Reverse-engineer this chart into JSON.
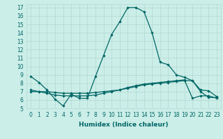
{
  "title": "",
  "xlabel": "Humidex (Indice chaleur)",
  "bg_color": "#cceee8",
  "grid_color": "#b0d8d0",
  "line_color": "#006666",
  "xlim": [
    -0.5,
    23.5
  ],
  "ylim": [
    5,
    17.4
  ],
  "xticks": [
    0,
    1,
    2,
    3,
    4,
    5,
    6,
    7,
    8,
    9,
    10,
    11,
    12,
    13,
    14,
    15,
    16,
    17,
    18,
    19,
    20,
    21,
    22,
    23
  ],
  "yticks": [
    5,
    6,
    7,
    8,
    9,
    10,
    11,
    12,
    13,
    14,
    15,
    16,
    17
  ],
  "series1_x": [
    0,
    1,
    2,
    3,
    4,
    5,
    6,
    7,
    8,
    9,
    10,
    11,
    12,
    13,
    14,
    15,
    16,
    17,
    18,
    19,
    20,
    21,
    22,
    23
  ],
  "series1_y": [
    8.8,
    8.1,
    7.2,
    6.1,
    5.3,
    6.7,
    6.2,
    6.2,
    8.8,
    11.3,
    13.8,
    15.3,
    17.0,
    17.0,
    16.5,
    14.0,
    10.5,
    10.2,
    9.0,
    8.7,
    8.3,
    7.2,
    7.1,
    6.4
  ],
  "series2_x": [
    0,
    1,
    2,
    3,
    4,
    5,
    6,
    7,
    8,
    9,
    10,
    11,
    12,
    13,
    14,
    15,
    16,
    17,
    18,
    19,
    20,
    21,
    22,
    23
  ],
  "series2_y": [
    7.0,
    7.0,
    7.0,
    6.9,
    6.8,
    6.8,
    6.8,
    6.8,
    6.9,
    7.0,
    7.1,
    7.2,
    7.4,
    7.6,
    7.8,
    7.9,
    8.0,
    8.1,
    8.2,
    8.3,
    8.3,
    7.0,
    6.3,
    6.3
  ],
  "series3_x": [
    0,
    1,
    2,
    3,
    4,
    5,
    6,
    7,
    8,
    9,
    10,
    11,
    12,
    13,
    14,
    15,
    16,
    17,
    18,
    19,
    20,
    21,
    22,
    23
  ],
  "series3_y": [
    7.2,
    7.0,
    6.8,
    6.6,
    6.5,
    6.5,
    6.5,
    6.5,
    6.6,
    6.8,
    7.0,
    7.2,
    7.5,
    7.7,
    7.9,
    8.0,
    8.1,
    8.2,
    8.3,
    8.4,
    6.2,
    6.5,
    6.5,
    6.2
  ],
  "tick_fontsize": 5.5,
  "xlabel_fontsize": 6.5
}
